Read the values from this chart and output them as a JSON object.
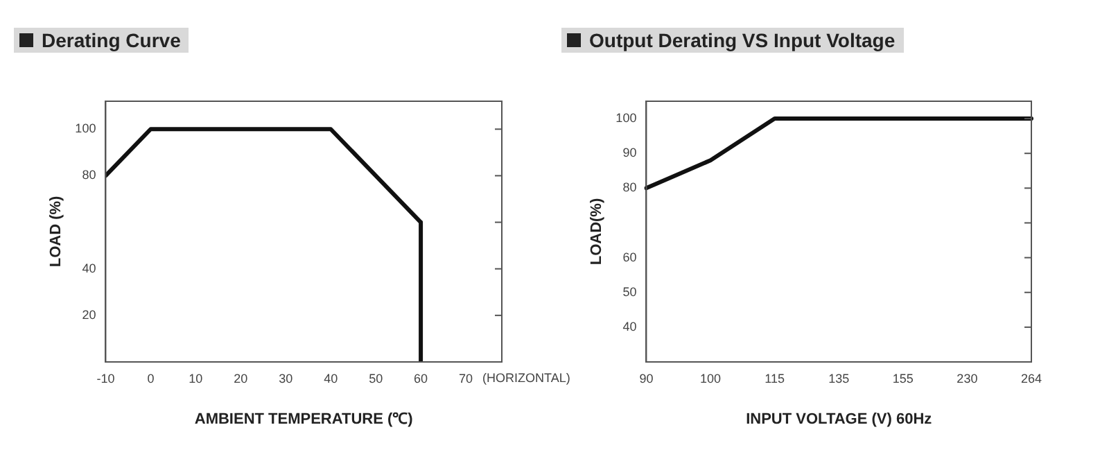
{
  "chart_data": [
    {
      "type": "line",
      "title": "Derating Curve",
      "xlabel": "AMBIENT TEMPERATURE (℃)",
      "ylabel": "LOAD (%)",
      "x": [
        -10,
        0,
        40,
        60,
        60
      ],
      "series": [
        {
          "color": "#111111",
          "values": [
            80,
            100,
            100,
            60,
            0
          ]
        }
      ],
      "xlim": [
        -10,
        78
      ],
      "xticks": [
        -10,
        0,
        10,
        20,
        30,
        40,
        50,
        60,
        70
      ],
      "annotations": [
        "(HORIZONTAL)"
      ],
      "ylim": [
        0,
        112
      ],
      "yticks": [
        20,
        40,
        {
          "value": 60,
          "label": null
        },
        80,
        100
      ],
      "grid": false,
      "legend": false,
      "marker": "none",
      "line_style": "solid"
    },
    {
      "type": "line",
      "title": "Output Derating VS Input Voltage",
      "xlabel": "INPUT VOLTAGE (V) 60Hz",
      "ylabel": "LOAD(%)",
      "categories": [
        "90",
        "100",
        "115",
        "135",
        "155",
        "230",
        "264"
      ],
      "series": [
        {
          "color": "#111111",
          "values": [
            80,
            88,
            100,
            100,
            100,
            100,
            100
          ]
        }
      ],
      "ylim": [
        30,
        105
      ],
      "yticks": [
        40,
        50,
        60,
        {
          "value": 70,
          "label": null
        },
        80,
        90,
        100
      ],
      "grid": false,
      "legend": false,
      "marker": "none",
      "line_style": "solid"
    }
  ]
}
